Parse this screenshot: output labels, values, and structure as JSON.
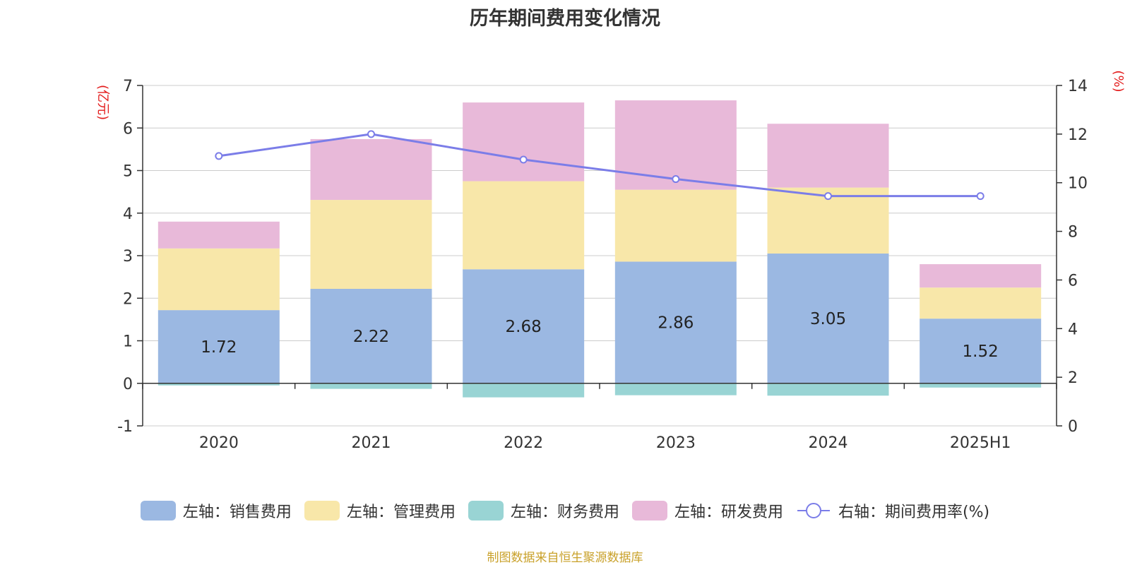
{
  "chart_data": {
    "type": "bar",
    "title": "历年期间费用变化情况",
    "categories": [
      "2020",
      "2021",
      "2022",
      "2023",
      "2024",
      "2025H1"
    ],
    "left_axis": {
      "unit": "(亿元)",
      "ylim": [
        -1,
        7
      ],
      "ticks": [
        "-1",
        "0",
        "1",
        "2",
        "3",
        "4",
        "5",
        "6",
        "7"
      ]
    },
    "right_axis": {
      "unit": "(%)",
      "ylim": [
        0,
        14
      ],
      "ticks": [
        "0",
        "2",
        "4",
        "6",
        "8",
        "10",
        "12",
        "14"
      ]
    },
    "grid": true,
    "legend_position": "bottom",
    "series": [
      {
        "name": "左轴：销售费用",
        "type": "bar",
        "color": "#9bb8e2",
        "values": [
          1.72,
          2.22,
          2.68,
          2.86,
          3.05,
          1.52
        ],
        "labels": [
          "1.72",
          "2.22",
          "2.68",
          "2.86",
          "3.05",
          "1.52"
        ]
      },
      {
        "name": "左轴：管理费用",
        "type": "bar",
        "color": "#f8e7a9",
        "values": [
          1.45,
          2.09,
          2.07,
          1.69,
          1.55,
          0.73
        ]
      },
      {
        "name": "左轴：财务费用",
        "type": "bar",
        "color": "#99d4d4",
        "values": [
          -0.05,
          -0.13,
          -0.33,
          -0.28,
          -0.29,
          -0.1
        ]
      },
      {
        "name": "左轴：研发费用",
        "type": "bar",
        "color": "#e8b9d9",
        "values": [
          0.63,
          1.43,
          1.85,
          2.1,
          1.5,
          0.55
        ]
      },
      {
        "name": "右轴：期间费用率(%)",
        "type": "line",
        "color": "#7b7de8",
        "values": [
          11.1,
          12.0,
          10.95,
          10.15,
          9.45,
          9.45
        ]
      }
    ]
  },
  "footer": {
    "text": "制图数据来自恒生聚源数据库",
    "color": "#c9a12a"
  },
  "axis_unit_color": "#e31b1b"
}
